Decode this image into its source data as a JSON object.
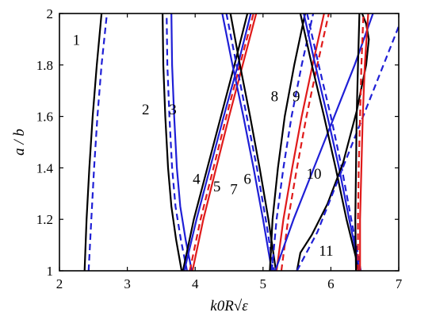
{
  "chart_data": {
    "type": "line",
    "xlabel": "k0R√ε",
    "ylabel": "a / b",
    "xlim": [
      2,
      7
    ],
    "ylim": [
      1,
      2
    ],
    "xticks": [
      "2",
      "3",
      "4",
      "5",
      "6",
      "7"
    ],
    "yticks": [
      "1",
      "1.2",
      "1.4",
      "1.6",
      "1.8",
      "2"
    ],
    "grid": false,
    "legend": "none",
    "colors": {
      "black": "#000000",
      "blue": "#1f1fd6",
      "red": "#e01a1a"
    },
    "series": [
      {
        "color": "black",
        "dash": "solid",
        "points": [
          [
            2.37,
            1.0
          ],
          [
            2.4,
            1.2
          ],
          [
            2.44,
            1.4
          ],
          [
            2.49,
            1.6
          ],
          [
            2.55,
            1.8
          ],
          [
            2.62,
            2.0
          ]
        ]
      },
      {
        "color": "blue",
        "dash": "dashed",
        "points": [
          [
            2.43,
            1.0
          ],
          [
            2.47,
            1.2
          ],
          [
            2.51,
            1.4
          ],
          [
            2.56,
            1.6
          ],
          [
            2.62,
            1.8
          ],
          [
            2.7,
            2.0
          ]
        ]
      },
      {
        "color": "black",
        "dash": "solid",
        "points": [
          [
            3.8,
            1.0
          ],
          [
            3.72,
            1.12
          ],
          [
            3.65,
            1.25
          ],
          [
            3.6,
            1.4
          ],
          [
            3.56,
            1.6
          ],
          [
            3.53,
            1.8
          ],
          [
            3.52,
            2.0
          ]
        ]
      },
      {
        "color": "blue",
        "dash": "dashed",
        "points": [
          [
            3.88,
            1.0
          ],
          [
            3.79,
            1.12
          ],
          [
            3.71,
            1.25
          ],
          [
            3.66,
            1.4
          ],
          [
            3.62,
            1.6
          ],
          [
            3.59,
            1.8
          ],
          [
            3.58,
            2.0
          ]
        ]
      },
      {
        "color": "blue",
        "dash": "solid",
        "points": [
          [
            3.95,
            1.0
          ],
          [
            3.86,
            1.12
          ],
          [
            3.78,
            1.25
          ],
          [
            3.73,
            1.4
          ],
          [
            3.69,
            1.6
          ],
          [
            3.66,
            1.8
          ],
          [
            3.65,
            2.0
          ]
        ]
      },
      {
        "color": "black",
        "dash": "solid",
        "points": [
          [
            3.82,
            1.0
          ],
          [
            3.98,
            1.2
          ],
          [
            4.18,
            1.4
          ],
          [
            4.38,
            1.6
          ],
          [
            4.58,
            1.8
          ],
          [
            4.77,
            2.0
          ]
        ]
      },
      {
        "color": "blue",
        "dash": "solid",
        "points": [
          [
            3.84,
            1.0
          ],
          [
            4.02,
            1.2
          ],
          [
            4.22,
            1.4
          ],
          [
            4.42,
            1.6
          ],
          [
            4.63,
            1.8
          ],
          [
            4.82,
            2.0
          ]
        ]
      },
      {
        "color": "red",
        "dash": "dashed",
        "points": [
          [
            3.92,
            1.0
          ],
          [
            4.08,
            1.2
          ],
          [
            4.27,
            1.4
          ],
          [
            4.46,
            1.6
          ],
          [
            4.66,
            1.8
          ],
          [
            4.86,
            2.0
          ]
        ]
      },
      {
        "color": "red",
        "dash": "solid",
        "points": [
          [
            3.96,
            1.0
          ],
          [
            4.12,
            1.2
          ],
          [
            4.31,
            1.4
          ],
          [
            4.5,
            1.6
          ],
          [
            4.7,
            1.8
          ],
          [
            4.9,
            2.0
          ]
        ]
      },
      {
        "color": "blue",
        "dash": "solid",
        "points": [
          [
            4.4,
            2.0
          ],
          [
            4.55,
            1.8
          ],
          [
            4.71,
            1.6
          ],
          [
            4.86,
            1.4
          ],
          [
            5.0,
            1.2
          ],
          [
            5.13,
            1.0
          ]
        ]
      },
      {
        "color": "blue",
        "dash": "dashed",
        "points": [
          [
            4.46,
            2.0
          ],
          [
            4.61,
            1.8
          ],
          [
            4.76,
            1.6
          ],
          [
            4.91,
            1.4
          ],
          [
            5.04,
            1.2
          ],
          [
            5.16,
            1.0
          ]
        ]
      },
      {
        "color": "black",
        "dash": "solid",
        "points": [
          [
            4.52,
            2.0
          ],
          [
            4.66,
            1.8
          ],
          [
            4.81,
            1.6
          ],
          [
            4.95,
            1.4
          ],
          [
            5.08,
            1.2
          ],
          [
            5.19,
            1.0
          ]
        ]
      },
      {
        "color": "black",
        "dash": "solid",
        "points": [
          [
            5.1,
            1.0
          ],
          [
            5.14,
            1.2
          ],
          [
            5.22,
            1.4
          ],
          [
            5.32,
            1.6
          ],
          [
            5.46,
            1.8
          ],
          [
            5.62,
            2.0
          ]
        ]
      },
      {
        "color": "blue",
        "dash": "dashed",
        "points": [
          [
            5.13,
            1.0
          ],
          [
            5.2,
            1.2
          ],
          [
            5.3,
            1.4
          ],
          [
            5.42,
            1.6
          ],
          [
            5.57,
            1.8
          ],
          [
            5.74,
            2.0
          ]
        ]
      },
      {
        "color": "red",
        "dash": "solid",
        "points": [
          [
            5.2,
            1.0
          ],
          [
            5.3,
            1.2
          ],
          [
            5.43,
            1.4
          ],
          [
            5.57,
            1.6
          ],
          [
            5.73,
            1.8
          ],
          [
            5.9,
            2.0
          ]
        ]
      },
      {
        "color": "red",
        "dash": "dashed",
        "points": [
          [
            5.27,
            1.0
          ],
          [
            5.37,
            1.2
          ],
          [
            5.5,
            1.4
          ],
          [
            5.64,
            1.6
          ],
          [
            5.8,
            1.8
          ],
          [
            5.97,
            2.0
          ]
        ]
      },
      {
        "color": "blue",
        "dash": "solid",
        "points": [
          [
            5.18,
            1.0
          ],
          [
            5.45,
            1.2
          ],
          [
            5.75,
            1.4
          ],
          [
            6.05,
            1.6
          ],
          [
            6.35,
            1.8
          ],
          [
            6.62,
            2.0
          ]
        ]
      },
      {
        "color": "black",
        "dash": "solid",
        "points": [
          [
            5.55,
            2.0
          ],
          [
            5.72,
            1.8
          ],
          [
            5.9,
            1.6
          ],
          [
            6.07,
            1.4
          ],
          [
            6.23,
            1.2
          ],
          [
            6.37,
            1.05
          ],
          [
            6.4,
            1.0
          ]
        ]
      },
      {
        "color": "blue",
        "dash": "solid",
        "points": [
          [
            5.6,
            2.0
          ],
          [
            5.77,
            1.8
          ],
          [
            5.95,
            1.6
          ],
          [
            6.12,
            1.4
          ],
          [
            6.27,
            1.2
          ],
          [
            6.39,
            1.05
          ],
          [
            6.42,
            1.0
          ]
        ]
      },
      {
        "color": "blue",
        "dash": "dashed",
        "points": [
          [
            5.65,
            2.0
          ],
          [
            5.82,
            1.8
          ],
          [
            6.0,
            1.6
          ],
          [
            6.16,
            1.4
          ],
          [
            6.3,
            1.2
          ],
          [
            6.41,
            1.05
          ],
          [
            6.44,
            1.0
          ]
        ]
      },
      {
        "color": "black",
        "dash": "solid",
        "points": [
          [
            5.5,
            1.0
          ],
          [
            5.55,
            1.07
          ],
          [
            5.72,
            1.14
          ],
          [
            5.95,
            1.26
          ],
          [
            6.18,
            1.42
          ],
          [
            6.38,
            1.62
          ],
          [
            6.52,
            1.8
          ],
          [
            6.56,
            1.9
          ],
          [
            6.52,
            1.96
          ],
          [
            6.46,
            2.0
          ]
        ]
      },
      {
        "color": "blue",
        "dash": "dashed",
        "points": [
          [
            5.5,
            1.0
          ],
          [
            5.8,
            1.15
          ],
          [
            6.1,
            1.35
          ],
          [
            6.4,
            1.55
          ],
          [
            6.7,
            1.75
          ],
          [
            7.0,
            1.95
          ]
        ]
      },
      {
        "color": "black",
        "dash": "solid",
        "points": [
          [
            6.37,
            1.0
          ],
          [
            6.36,
            1.2
          ],
          [
            6.37,
            1.4
          ],
          [
            6.38,
            1.6
          ],
          [
            6.4,
            1.8
          ],
          [
            6.42,
            2.0
          ]
        ]
      },
      {
        "color": "red",
        "dash": "dashed",
        "points": [
          [
            6.4,
            1.0
          ],
          [
            6.4,
            1.2
          ],
          [
            6.41,
            1.4
          ],
          [
            6.43,
            1.6
          ],
          [
            6.45,
            1.8
          ],
          [
            6.48,
            2.0
          ]
        ]
      },
      {
        "color": "red",
        "dash": "solid",
        "points": [
          [
            6.43,
            1.0
          ],
          [
            6.43,
            1.2
          ],
          [
            6.45,
            1.4
          ],
          [
            6.47,
            1.6
          ],
          [
            6.5,
            1.8
          ],
          [
            6.55,
            2.0
          ]
        ]
      }
    ],
    "curve_labels": [
      {
        "text": "1",
        "x": 2.25,
        "y": 1.9
      },
      {
        "text": "2",
        "x": 3.27,
        "y": 1.63
      },
      {
        "text": "3",
        "x": 3.67,
        "y": 1.63
      },
      {
        "text": "4",
        "x": 4.02,
        "y": 1.36
      },
      {
        "text": "5",
        "x": 4.32,
        "y": 1.33
      },
      {
        "text": "6",
        "x": 4.77,
        "y": 1.36
      },
      {
        "text": "7",
        "x": 4.57,
        "y": 1.32
      },
      {
        "text": "8",
        "x": 5.17,
        "y": 1.68
      },
      {
        "text": "9",
        "x": 5.49,
        "y": 1.68
      },
      {
        "text": "10",
        "x": 5.75,
        "y": 1.38
      },
      {
        "text": "11",
        "x": 5.93,
        "y": 1.08
      }
    ]
  }
}
